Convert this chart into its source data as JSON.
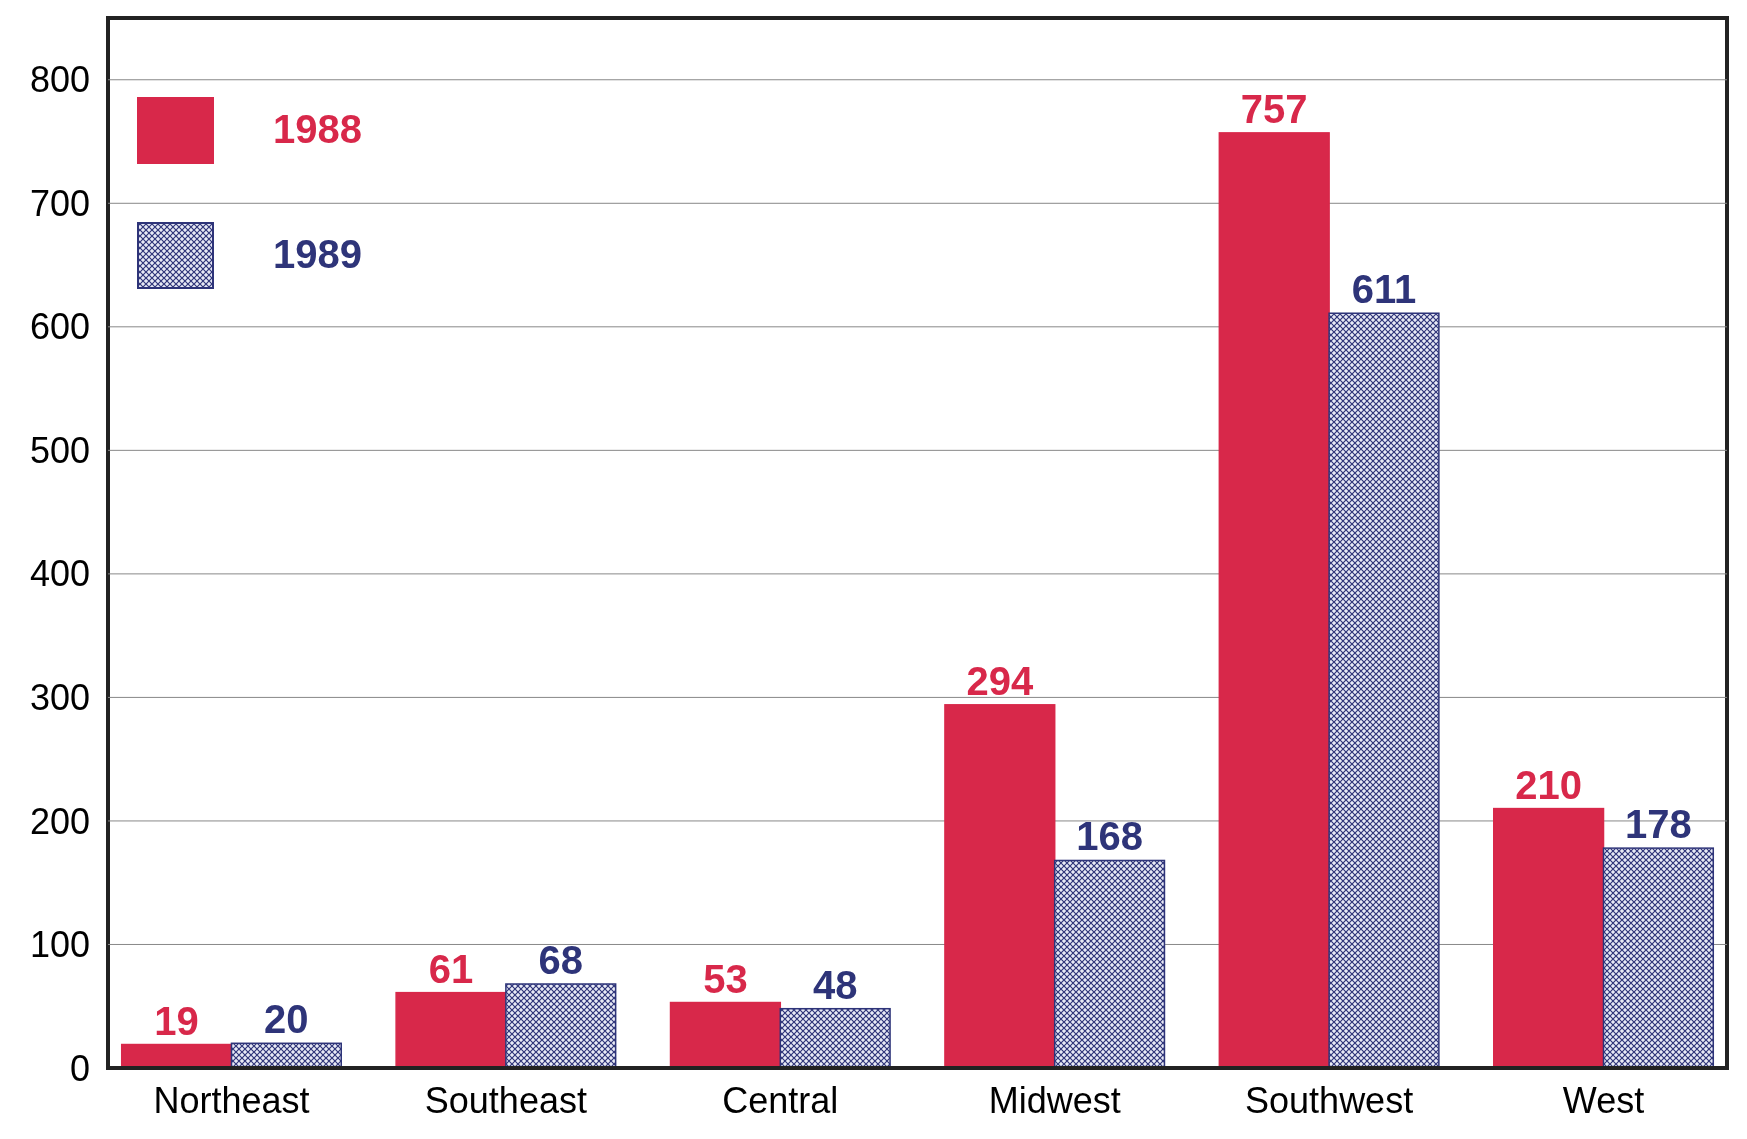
{
  "chart_data": {
    "type": "bar",
    "categories": [
      "Northeast",
      "Southeast",
      "Central",
      "Midwest",
      "Southwest",
      "West"
    ],
    "series": [
      {
        "name": "1988",
        "color": "#d8284a",
        "values": [
          19,
          61,
          53,
          294,
          757,
          210
        ]
      },
      {
        "name": "1989",
        "color": "#2e3479",
        "values": [
          20,
          68,
          48,
          168,
          611,
          178
        ]
      }
    ],
    "ylim": [
      0,
      850
    ],
    "yticks": [
      0,
      100,
      200,
      300,
      400,
      500,
      600,
      700,
      800
    ],
    "grid": "y",
    "legend": "top left",
    "data_labels": true
  }
}
